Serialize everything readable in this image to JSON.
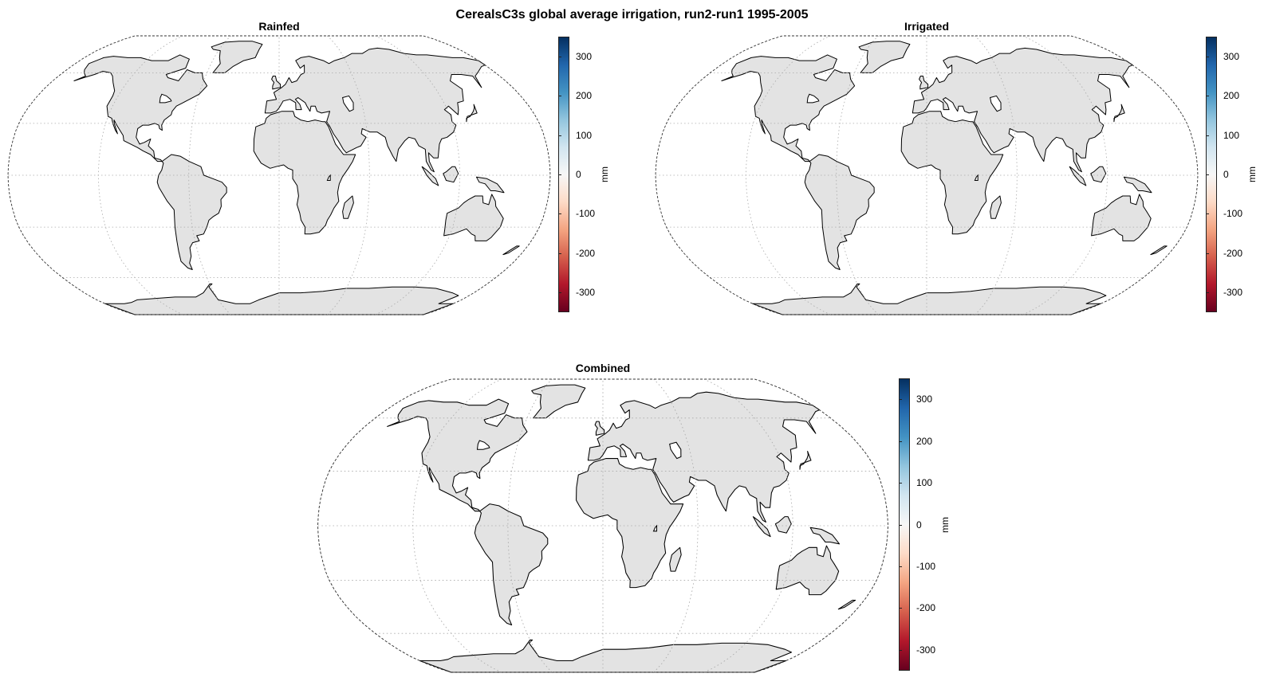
{
  "figure": {
    "title": "CerealsC3s global average irrigation, run2-run1 1995-2005"
  },
  "colorbar": {
    "label": "mm",
    "ticks": [
      "300",
      "200",
      "100",
      "0",
      "-100",
      "-200",
      "-300"
    ],
    "range": [
      -350,
      350
    ],
    "colormap": [
      "#053061",
      "#2166ac",
      "#4393c3",
      "#92c5de",
      "#d1e5f0",
      "#f7f7f7",
      "#fddbc7",
      "#f4a582",
      "#d6604d",
      "#b2182b",
      "#67001f"
    ]
  },
  "panels": [
    {
      "id": "rainfed",
      "title": "Rainfed"
    },
    {
      "id": "irrigated",
      "title": "Irrigated"
    },
    {
      "id": "combined",
      "title": "Combined"
    }
  ],
  "map": {
    "projection": "Robinson",
    "land_color": "#e3e3e3",
    "coast_color": "#000000",
    "graticule": "dotted"
  }
}
